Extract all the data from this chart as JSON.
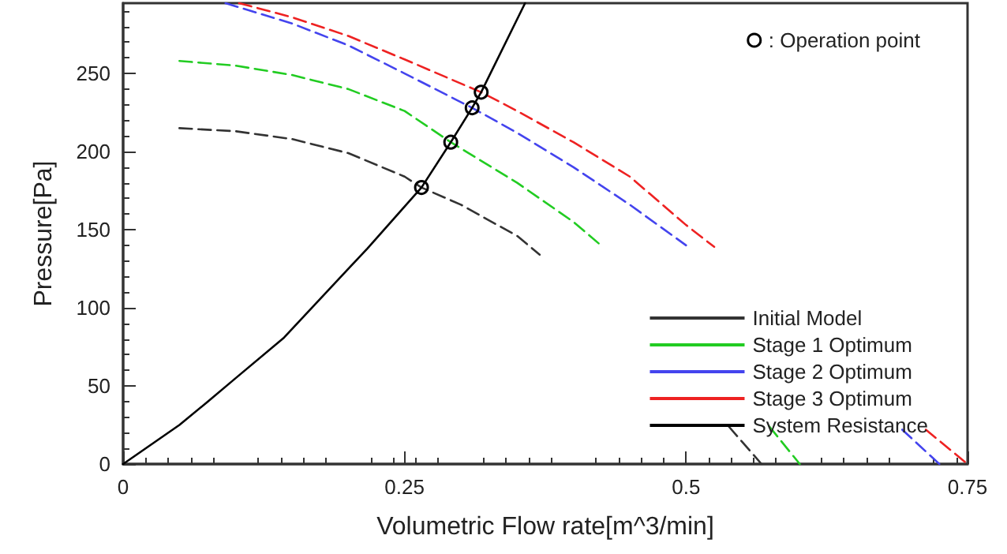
{
  "chart_data": {
    "type": "line",
    "xlabel": "Volumetric Flow rate[m^3/min]",
    "ylabel": "Pressure[Pa]",
    "xlim": [
      0,
      0.75
    ],
    "xticks": [
      0,
      0.25,
      0.5,
      0.75
    ],
    "ylim": [
      0,
      295
    ],
    "yticks": [
      0,
      50,
      100,
      150,
      200,
      250
    ],
    "grid": false,
    "legend": "bottom right",
    "series": [
      {
        "name": "Initial Model",
        "color": "#333333",
        "line_style": "dashed",
        "marker": "none",
        "x": [
          0.05,
          0.1,
          0.15,
          0.2,
          0.25,
          0.265,
          0.3,
          0.35,
          0.37,
          0.45,
          0.538,
          0.567
        ],
        "values": [
          215,
          213,
          208,
          199,
          184,
          177,
          166,
          146,
          134,
          null,
          24,
          0
        ]
      },
      {
        "name": "Stage 1 Optimum",
        "color": "#22cc22",
        "line_style": "dashed",
        "marker": "none",
        "x": [
          0.05,
          0.1,
          0.15,
          0.2,
          0.25,
          0.291,
          0.35,
          0.4,
          0.426,
          0.5,
          0.574,
          0.601
        ],
        "values": [
          258,
          255,
          249,
          240,
          226,
          206,
          180,
          155,
          139,
          null,
          24,
          0
        ]
      },
      {
        "name": "Stage 2 Optimum",
        "color": "#4444ee",
        "line_style": "dashed",
        "marker": "none",
        "x": [
          0.091,
          0.1,
          0.15,
          0.2,
          0.25,
          0.31,
          0.35,
          0.4,
          0.45,
          0.5,
          0.6,
          0.692,
          0.725
        ],
        "values": [
          295,
          293,
          282,
          268,
          250,
          228,
          212,
          190,
          166,
          140,
          null,
          22,
          0
        ]
      },
      {
        "name": "Stage 3 Optimum",
        "color": "#ee2222",
        "line_style": "dashed",
        "marker": "none",
        "x": [
          0.103,
          0.15,
          0.2,
          0.25,
          0.318,
          0.35,
          0.4,
          0.45,
          0.5,
          0.525,
          0.62,
          0.713,
          0.75
        ],
        "values": [
          295,
          286,
          274,
          259,
          238,
          226,
          206,
          184,
          153,
          139,
          null,
          22,
          0
        ]
      },
      {
        "name": "System Resistance",
        "color": "#000000",
        "line_style": "solid",
        "marker": "none",
        "x": [
          0,
          0.05,
          0.077,
          0.1,
          0.143,
          0.2,
          0.217,
          0.265,
          0.291,
          0.31,
          0.318,
          0.357
        ],
        "values": [
          0,
          25,
          41,
          55,
          81,
          125,
          138,
          177,
          206,
          228,
          238,
          295
        ]
      },
      {
        "name": ": Operation point",
        "type": "scatter",
        "color": "#000000",
        "marker": "circle",
        "x": [
          0.265,
          0.291,
          0.31,
          0.318
        ],
        "values": [
          177,
          206,
          228,
          238
        ]
      }
    ]
  }
}
